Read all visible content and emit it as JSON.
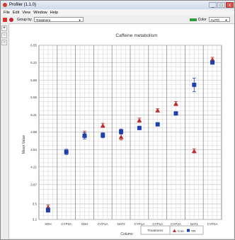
{
  "window": {
    "title": "Profiler (1.1.0)",
    "buttons": [
      "_",
      "□",
      "x"
    ]
  },
  "menu": {
    "items": [
      "File",
      "Edit",
      "View",
      "Window",
      "Help"
    ]
  },
  "toolbar": {
    "group_by_label": "Group by",
    "group_by_value": "Treatment",
    "color_label": "Color",
    "color_value": "AUTO"
  },
  "colors": {
    "con": "#b8302e",
    "tr": "#1f3fae",
    "grid": "#d7d7d7"
  },
  "chart_data": {
    "type": "scatter",
    "title": "Caffeine metabolism",
    "xlabel": "Column",
    "ylabel": "Mean Value",
    "categories": [
      "XDH",
      "CYP2A",
      "XDH",
      "CYP1A",
      "NAT2",
      "CYP1A",
      "CYP1A",
      "CYP2A",
      "NAT1",
      "CYP2A"
    ],
    "ylim": [
      3.2,
      6.55
    ],
    "yticks": [
      3.2,
      3.5,
      3.87,
      4.21,
      4.54,
      4.88,
      5.21,
      5.55,
      5.88,
      6.22,
      6.55
    ],
    "grid": true,
    "legend": {
      "title": "Treatment",
      "placement": "bottom-right"
    },
    "series": [
      {
        "name": "Con",
        "marker": "triangle",
        "values": [
          3.44,
          null,
          4.84,
          5.01,
          4.79,
          5.11,
          5.3,
          5.43,
          4.52,
          6.28
        ],
        "errors": [
          0.04,
          null,
          0.06,
          0.04,
          0.06,
          0.04,
          0.03,
          0.04,
          0.04,
          0.04
        ]
      },
      {
        "name": "TR",
        "marker": "square",
        "values": [
          3.38,
          4.5,
          4.81,
          4.82,
          4.89,
          4.96,
          5.03,
          5.24,
          5.79,
          6.22
        ],
        "errors": [
          0.04,
          0.05,
          0.06,
          0.05,
          0.05,
          0.03,
          0.03,
          0.03,
          0.13,
          0.03
        ]
      }
    ]
  }
}
